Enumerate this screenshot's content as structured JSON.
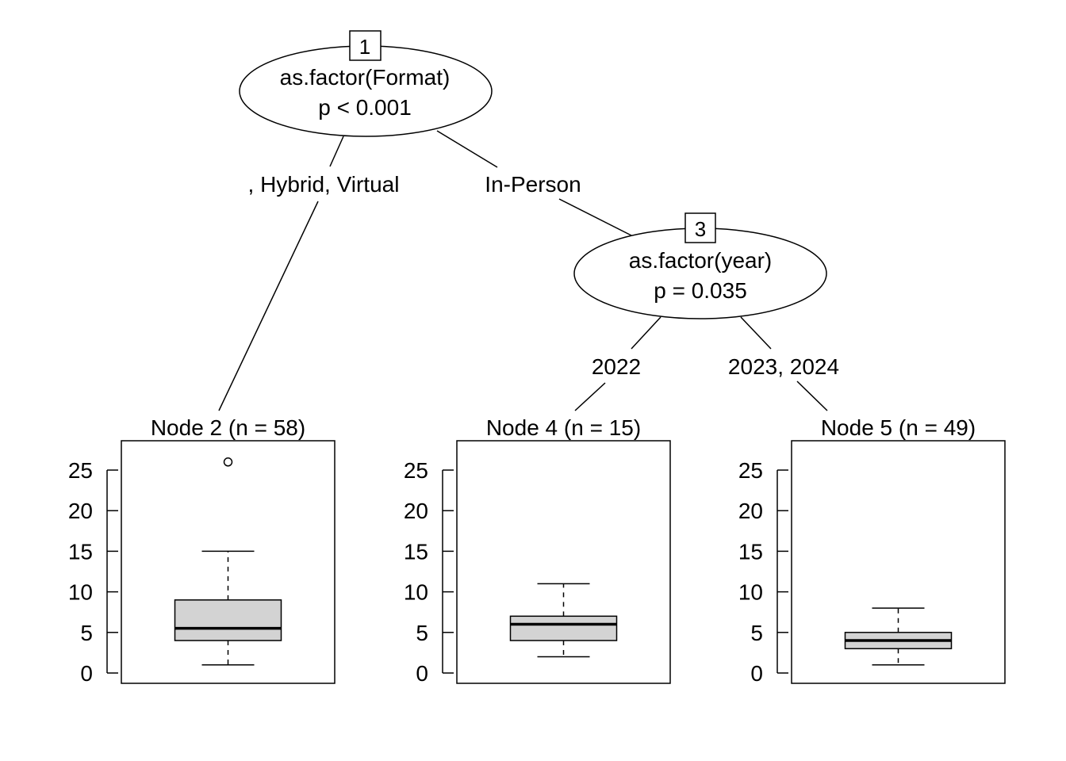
{
  "chart_data": {
    "type": "decision-tree-boxplot",
    "splits": [
      {
        "id": "1",
        "variable": "as.factor(Format)",
        "pvalue": "p < 0.001"
      },
      {
        "id": "3",
        "variable": "as.factor(year)",
        "pvalue": "p = 0.035"
      }
    ],
    "edges": [
      {
        "from": "1",
        "to": "2",
        "label": ", Hybrid, Virtual"
      },
      {
        "from": "1",
        "to": "3",
        "label": "In-Person"
      },
      {
        "from": "3",
        "to": "4",
        "label": "2022"
      },
      {
        "from": "3",
        "to": "5",
        "label": "2023, 2024"
      }
    ],
    "ylim": [
      0,
      27
    ],
    "yticks": [
      0,
      5,
      10,
      15,
      20,
      25
    ],
    "yticklabels": [
      "0",
      "5",
      "10",
      "15",
      "20",
      "25"
    ],
    "leaves": [
      {
        "id": "2",
        "title": "Node 2 (n = 58)",
        "n": 58,
        "box": {
          "whisker_low": 1,
          "q1": 4,
          "median": 5.5,
          "q3": 9,
          "whisker_high": 15
        },
        "outliers": [
          26
        ]
      },
      {
        "id": "4",
        "title": "Node 4 (n = 15)",
        "n": 15,
        "box": {
          "whisker_low": 2,
          "q1": 4,
          "median": 6,
          "q3": 7,
          "whisker_high": 11
        },
        "outliers": []
      },
      {
        "id": "5",
        "title": "Node 5 (n = 49)",
        "n": 49,
        "box": {
          "whisker_low": 1,
          "q1": 3,
          "median": 4,
          "q3": 5,
          "whisker_high": 8
        },
        "outliers": []
      }
    ],
    "colors": {
      "box_fill": "#d3d3d3",
      "line": "#000000"
    }
  }
}
